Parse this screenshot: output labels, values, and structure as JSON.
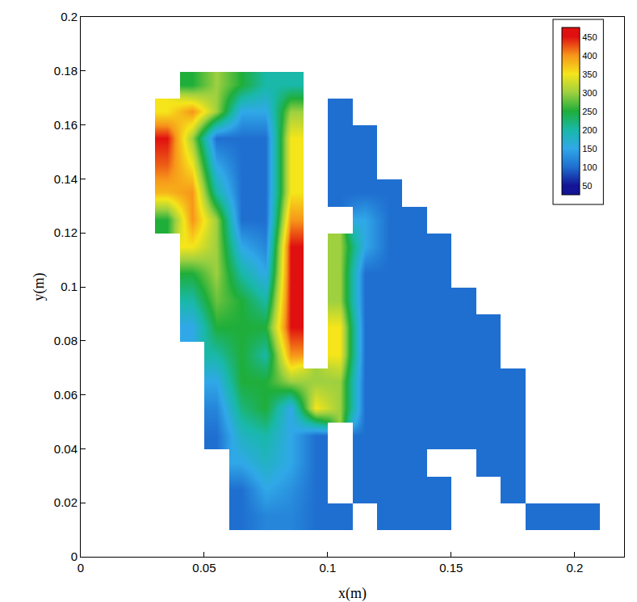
{
  "chart_data": {
    "type": "heatmap",
    "x_label": "x(m)",
    "y_label": "y(m)",
    "xlim": [
      0,
      0.22
    ],
    "ylim": [
      0,
      0.2
    ],
    "xticks": [
      0,
      0.05,
      0.1,
      0.15,
      0.2
    ],
    "yticks": [
      0,
      0.02,
      0.04,
      0.06,
      0.08,
      0.1,
      0.12,
      0.14,
      0.16,
      0.18,
      0.2
    ],
    "grid": false,
    "x": [
      0.005,
      0.015,
      0.025,
      0.035,
      0.045,
      0.055,
      0.065,
      0.075,
      0.085,
      0.095,
      0.105,
      0.115,
      0.125,
      0.135,
      0.145,
      0.155,
      0.165,
      0.175,
      0.185,
      0.195,
      0.205,
      0.215
    ],
    "y": [
      0.005,
      0.015,
      0.025,
      0.035,
      0.045,
      0.055,
      0.065,
      0.075,
      0.085,
      0.095,
      0.105,
      0.115,
      0.125,
      0.135,
      0.145,
      0.155,
      0.165,
      0.175,
      0.185,
      0.195
    ],
    "cells": [
      [
        null,
        null,
        null,
        null,
        null,
        null,
        null,
        null,
        null,
        null,
        null,
        null,
        null,
        null,
        null,
        null,
        null,
        null,
        null,
        null,
        null,
        null
      ],
      [
        null,
        null,
        null,
        null,
        null,
        null,
        100,
        120,
        120,
        100,
        100,
        null,
        100,
        100,
        100,
        null,
        null,
        null,
        100,
        100,
        100,
        null
      ],
      [
        null,
        null,
        null,
        null,
        null,
        null,
        100,
        150,
        130,
        100,
        null,
        100,
        100,
        100,
        100,
        null,
        null,
        100,
        null,
        null,
        null,
        null
      ],
      [
        null,
        null,
        null,
        null,
        null,
        null,
        150,
        180,
        150,
        100,
        null,
        100,
        100,
        100,
        null,
        null,
        100,
        100,
        null,
        null,
        null,
        null
      ],
      [
        null,
        null,
        null,
        null,
        null,
        100,
        180,
        200,
        150,
        100,
        null,
        100,
        100,
        100,
        100,
        100,
        100,
        100,
        null,
        null,
        null,
        null
      ],
      [
        null,
        null,
        null,
        null,
        null,
        120,
        220,
        250,
        150,
        350,
        300,
        100,
        100,
        100,
        100,
        100,
        100,
        100,
        null,
        null,
        null,
        null
      ],
      [
        null,
        null,
        null,
        null,
        null,
        150,
        250,
        250,
        300,
        300,
        300,
        100,
        100,
        100,
        100,
        100,
        100,
        100,
        null,
        null,
        null,
        null
      ],
      [
        null,
        null,
        null,
        null,
        null,
        200,
        250,
        200,
        400,
        null,
        350,
        100,
        100,
        100,
        100,
        100,
        100,
        null,
        null,
        null,
        null,
        null
      ],
      [
        null,
        null,
        null,
        null,
        150,
        250,
        250,
        250,
        450,
        null,
        350,
        100,
        100,
        100,
        100,
        100,
        100,
        null,
        null,
        null,
        null,
        null
      ],
      [
        null,
        null,
        null,
        null,
        200,
        280,
        250,
        200,
        450,
        null,
        300,
        100,
        100,
        100,
        100,
        100,
        null,
        null,
        null,
        null,
        null,
        null
      ],
      [
        null,
        null,
        null,
        null,
        250,
        300,
        200,
        150,
        450,
        null,
        300,
        100,
        100,
        100,
        100,
        null,
        null,
        null,
        null,
        null,
        null,
        null
      ],
      [
        null,
        null,
        null,
        null,
        350,
        300,
        150,
        120,
        450,
        null,
        300,
        150,
        100,
        100,
        100,
        null,
        null,
        null,
        null,
        null,
        null,
        null
      ],
      [
        null,
        null,
        null,
        250,
        400,
        300,
        100,
        100,
        400,
        null,
        null,
        150,
        100,
        100,
        null,
        null,
        null,
        null,
        null,
        null,
        null,
        null
      ],
      [
        null,
        null,
        null,
        380,
        400,
        200,
        100,
        100,
        350,
        null,
        100,
        100,
        100,
        null,
        null,
        null,
        null,
        null,
        null,
        null,
        null,
        null
      ],
      [
        null,
        null,
        null,
        420,
        350,
        150,
        100,
        100,
        350,
        null,
        100,
        100,
        null,
        null,
        null,
        null,
        null,
        null,
        null,
        null,
        null,
        null
      ],
      [
        null,
        null,
        null,
        450,
        300,
        100,
        100,
        100,
        350,
        null,
        100,
        100,
        null,
        null,
        null,
        null,
        null,
        null,
        null,
        null,
        null,
        null
      ],
      [
        null,
        null,
        null,
        350,
        400,
        300,
        150,
        150,
        300,
        null,
        100,
        null,
        null,
        null,
        null,
        null,
        null,
        null,
        null,
        null,
        null,
        null
      ],
      [
        null,
        null,
        null,
        null,
        250,
        300,
        250,
        200,
        200,
        null,
        null,
        null,
        null,
        null,
        null,
        null,
        null,
        null,
        null,
        null,
        null,
        null
      ],
      [
        null,
        null,
        null,
        null,
        null,
        null,
        null,
        null,
        null,
        null,
        null,
        null,
        null,
        null,
        null,
        null,
        null,
        null,
        null,
        null,
        null,
        null
      ],
      [
        null,
        null,
        null,
        null,
        null,
        null,
        null,
        null,
        null,
        null,
        null,
        null,
        null,
        null,
        null,
        null,
        null,
        null,
        null,
        null,
        null,
        null
      ]
    ],
    "colorbar_range": [
      25,
      475
    ],
    "colorbar_ticks": [
      50,
      100,
      150,
      200,
      250,
      300,
      350,
      400,
      450
    ],
    "colors": [
      "#141496",
      "#1f6fd0",
      "#30a8e8",
      "#19b8a8",
      "#1fae3a",
      "#9ed040",
      "#f5e51a",
      "#f7961a",
      "#e01010"
    ]
  }
}
